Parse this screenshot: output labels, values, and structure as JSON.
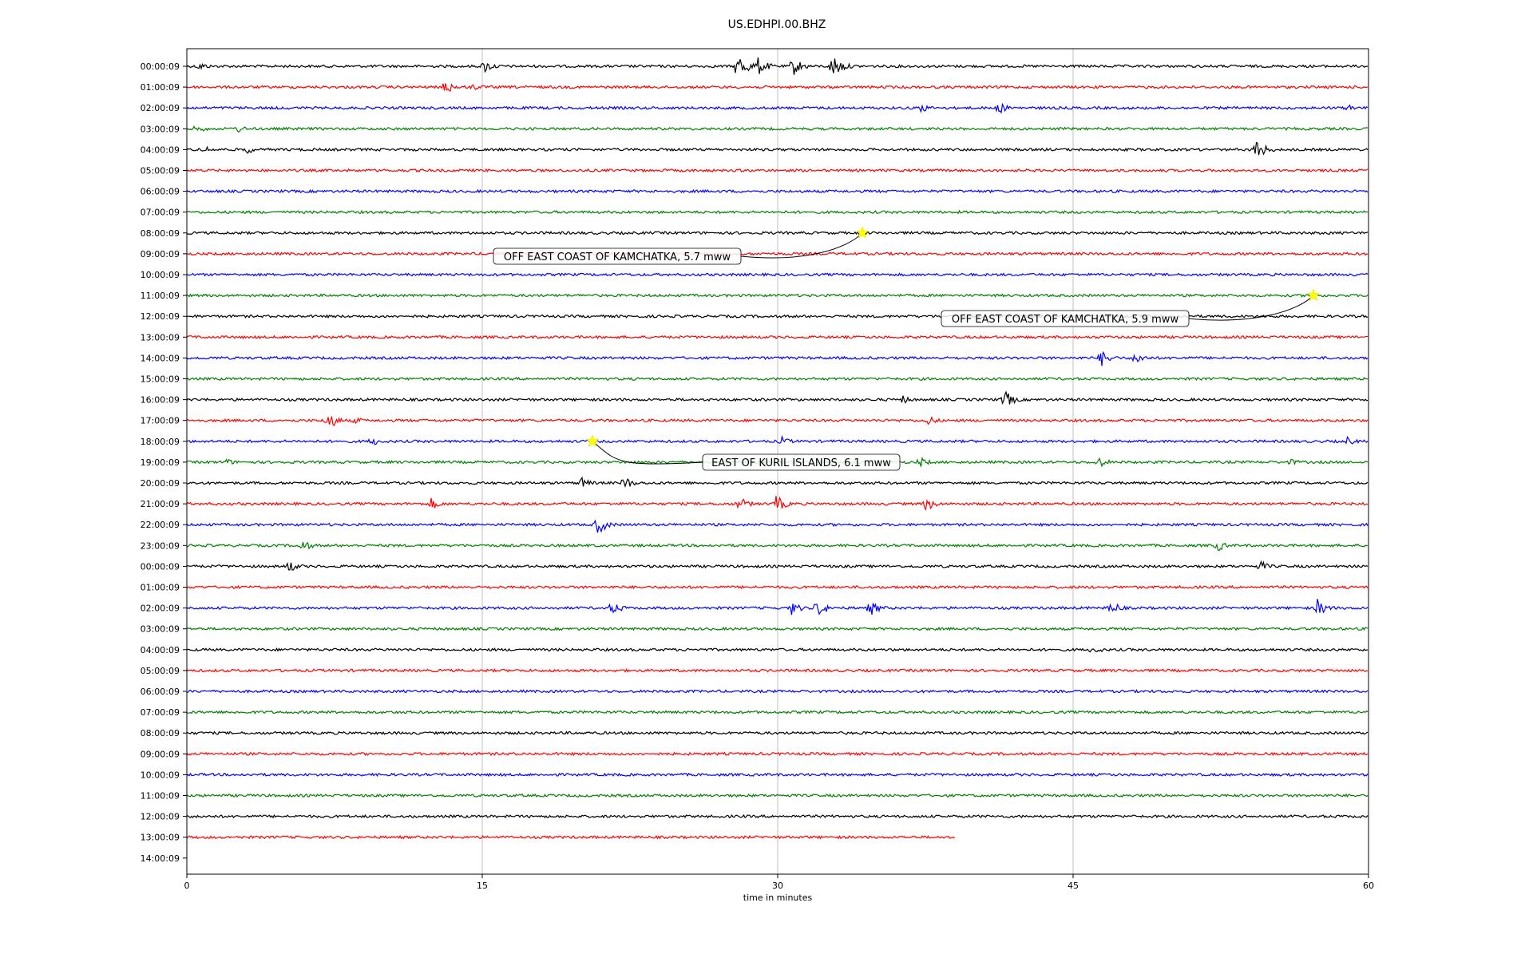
{
  "chart_data": {
    "type": "line",
    "title": "US.EDHPI.00.BHZ",
    "xlabel": "time in minutes",
    "ylabel": "",
    "xlim": [
      0,
      60
    ],
    "x_ticks": [
      0,
      15,
      30,
      45,
      60
    ],
    "x_tick_labels": [
      "0",
      "15",
      "30",
      "45",
      "60"
    ],
    "grid": "vertical lines at x ticks",
    "row_labels": [
      "00:00:09",
      "01:00:09",
      "02:00:09",
      "03:00:09",
      "04:00:09",
      "05:00:09",
      "06:00:09",
      "07:00:09",
      "08:00:09",
      "09:00:09",
      "10:00:09",
      "11:00:09",
      "12:00:09",
      "13:00:09",
      "14:00:09",
      "15:00:09",
      "16:00:09",
      "17:00:09",
      "18:00:09",
      "19:00:09",
      "20:00:09",
      "21:00:09",
      "22:00:09",
      "23:00:09",
      "00:00:09",
      "01:00:09",
      "02:00:09",
      "03:00:09",
      "04:00:09",
      "05:00:09",
      "06:00:09",
      "07:00:09",
      "08:00:09",
      "09:00:09",
      "10:00:09",
      "11:00:09",
      "12:00:09",
      "13:00:09",
      "14:00:09"
    ],
    "row_colors": [
      "#000000",
      "#ff0000",
      "#0000ff",
      "#008000"
    ],
    "last_row_end_minute": 39,
    "events": [
      {
        "row": 8,
        "minute": 34.3,
        "label": "OFF EAST COAST OF KAMCHATKA, 5.7 mww"
      },
      {
        "row": 11,
        "minute": 57.2,
        "label": "OFF EAST COAST OF KAMCHATKA, 5.9 mww"
      },
      {
        "row": 18,
        "minute": 20.6,
        "label": "EAST OF KURIL ISLANDS, 6.1 mww"
      }
    ],
    "bursts": [
      {
        "row": 0,
        "minute": 0.6,
        "amp": 6
      },
      {
        "row": 0,
        "minute": 15.1,
        "amp": 9
      },
      {
        "row": 0,
        "minute": 28.0,
        "amp": 18
      },
      {
        "row": 0,
        "minute": 29.0,
        "amp": 12
      },
      {
        "row": 0,
        "minute": 30.8,
        "amp": 12
      },
      {
        "row": 0,
        "minute": 32.8,
        "amp": 16
      },
      {
        "row": 1,
        "minute": 13.1,
        "amp": 10
      },
      {
        "row": 1,
        "minute": 14.5,
        "amp": 5
      },
      {
        "row": 2,
        "minute": 37.2,
        "amp": 7
      },
      {
        "row": 2,
        "minute": 41.2,
        "amp": 8
      },
      {
        "row": 2,
        "minute": 59.0,
        "amp": 5
      },
      {
        "row": 3,
        "minute": 0.5,
        "amp": 6
      },
      {
        "row": 3,
        "minute": 2.5,
        "amp": 6
      },
      {
        "row": 4,
        "minute": 0.8,
        "amp": 6
      },
      {
        "row": 4,
        "minute": 3.0,
        "amp": 6
      },
      {
        "row": 4,
        "minute": 54.3,
        "amp": 14
      },
      {
        "row": 13,
        "minute": 0.0,
        "amp": 3
      },
      {
        "row": 14,
        "minute": 46.4,
        "amp": 12
      },
      {
        "row": 14,
        "minute": 48.2,
        "amp": 8
      },
      {
        "row": 16,
        "minute": 36.3,
        "amp": 6
      },
      {
        "row": 16,
        "minute": 41.5,
        "amp": 12
      },
      {
        "row": 17,
        "minute": 7.1,
        "amp": 14
      },
      {
        "row": 17,
        "minute": 8.5,
        "amp": 5
      },
      {
        "row": 17,
        "minute": 37.6,
        "amp": 7
      },
      {
        "row": 18,
        "minute": 9.4,
        "amp": 6
      },
      {
        "row": 18,
        "minute": 30.2,
        "amp": 6
      },
      {
        "row": 18,
        "minute": 58.9,
        "amp": 6
      },
      {
        "row": 19,
        "minute": 2.0,
        "amp": 5
      },
      {
        "row": 19,
        "minute": 37.2,
        "amp": 7
      },
      {
        "row": 19,
        "minute": 46.2,
        "amp": 9
      },
      {
        "row": 19,
        "minute": 56.0,
        "amp": 5
      },
      {
        "row": 20,
        "minute": 20.0,
        "amp": 8
      },
      {
        "row": 20,
        "minute": 22.2,
        "amp": 9
      },
      {
        "row": 21,
        "minute": 12.4,
        "amp": 8
      },
      {
        "row": 21,
        "minute": 28.0,
        "amp": 10
      },
      {
        "row": 21,
        "minute": 29.9,
        "amp": 12
      },
      {
        "row": 21,
        "minute": 37.5,
        "amp": 10
      },
      {
        "row": 22,
        "minute": 20.8,
        "amp": 14
      },
      {
        "row": 23,
        "minute": 5.8,
        "amp": 9
      },
      {
        "row": 23,
        "minute": 52.3,
        "amp": 8
      },
      {
        "row": 24,
        "minute": 5.1,
        "amp": 9
      },
      {
        "row": 24,
        "minute": 54.5,
        "amp": 7
      },
      {
        "row": 26,
        "minute": 21.6,
        "amp": 9
      },
      {
        "row": 26,
        "minute": 30.7,
        "amp": 9
      },
      {
        "row": 26,
        "minute": 32.0,
        "amp": 12
      },
      {
        "row": 26,
        "minute": 34.7,
        "amp": 10
      },
      {
        "row": 26,
        "minute": 46.9,
        "amp": 10
      },
      {
        "row": 26,
        "minute": 57.4,
        "amp": 12
      },
      {
        "row": 28,
        "minute": 46.0,
        "amp": 6
      }
    ]
  }
}
